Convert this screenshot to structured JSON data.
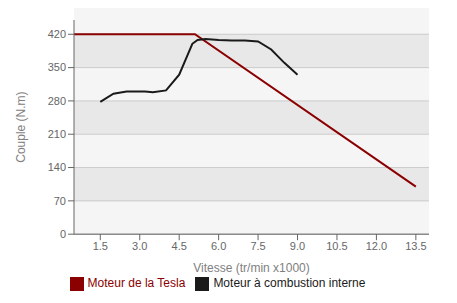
{
  "chart_data": {
    "type": "line",
    "xlabel": "Vitesse (tr/min x1000)",
    "ylabel": "Couple (N.m)",
    "xlim": [
      0.5,
      14.0
    ],
    "ylim": [
      0,
      450
    ],
    "xticks": [
      1.5,
      {
        "value": 3.0,
        "label": "3.0"
      },
      4.5,
      {
        "value": 6.0,
        "label": "6.0"
      },
      7.5,
      {
        "value": 9.0,
        "label": "9.0"
      },
      10.5,
      {
        "value": 12.0,
        "label": "12.0"
      },
      13.5
    ],
    "yticks": [
      0,
      70,
      140,
      210,
      280,
      350,
      420
    ],
    "grid": true,
    "legend": "bottom",
    "series": [
      {
        "name": "Moteur de la Tesla",
        "color": "#8B0000",
        "x": [
          0.5,
          5.1,
          13.5
        ],
        "values": [
          420,
          420,
          100
        ]
      },
      {
        "name": "Moteur à combustion interne",
        "color": "#1a1a1a",
        "x": [
          1.5,
          2.0,
          2.5,
          3.0,
          3.2,
          3.5,
          4.0,
          4.5,
          5.0,
          5.2,
          5.5,
          6.0,
          6.5,
          7.0,
          7.5,
          8.0,
          8.5,
          9.0
        ],
        "values": [
          278,
          295,
          300,
          300,
          300,
          298,
          302,
          335,
          400,
          408,
          410,
          408,
          407,
          407,
          405,
          388,
          360,
          335
        ]
      }
    ]
  }
}
